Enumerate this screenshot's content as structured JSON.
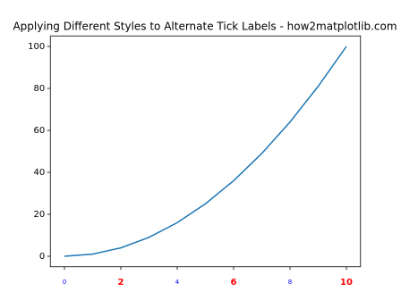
{
  "chart_data": {
    "type": "line",
    "title": "Applying Different Styles to Alternate Tick Labels - how2matplotlib.com",
    "x": [
      0,
      1,
      2,
      3,
      4,
      5,
      6,
      7,
      8,
      9,
      10
    ],
    "values": [
      0,
      1,
      4,
      9,
      16,
      25,
      36,
      49,
      64,
      81,
      100
    ],
    "color": "#1f77b4",
    "xlim": [
      -0.5,
      10.5
    ],
    "xticks": [
      0,
      2,
      4,
      6,
      8,
      10
    ],
    "xtick_styles": [
      {
        "color": "#0000ff",
        "bold": false
      },
      {
        "color": "#ff0000",
        "bold": true
      },
      {
        "color": "#0000ff",
        "bold": false
      },
      {
        "color": "#ff0000",
        "bold": true
      },
      {
        "color": "#0000ff",
        "bold": false
      },
      {
        "color": "#ff0000",
        "bold": true
      }
    ],
    "ylim": [
      -5,
      105
    ],
    "yticks": [
      0,
      20,
      40,
      60,
      80,
      100
    ],
    "grid": false
  }
}
